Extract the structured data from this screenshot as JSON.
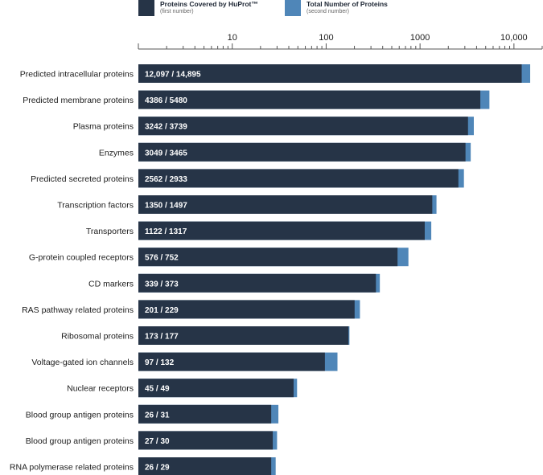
{
  "legend": {
    "covered": {
      "name": "Proteins Covered by HuProt™",
      "sub": "(first number)",
      "color": "#263447"
    },
    "total": {
      "name": "Total Number of Proteins",
      "sub": "(second number)",
      "color": "#4f86b8"
    }
  },
  "chart_data": {
    "type": "bar",
    "orientation": "horizontal",
    "title": "",
    "xscale": "log",
    "xlim": [
      1,
      20000
    ],
    "ticks": [
      {
        "value": 10,
        "label": "10"
      },
      {
        "value": 100,
        "label": "100"
      },
      {
        "value": 1000,
        "label": "1000"
      },
      {
        "value": 10000,
        "label": "10,000"
      }
    ],
    "categories": [
      "Predicted intracellular proteins",
      "Predicted membrane proteins",
      "Plasma proteins",
      "Enzymes",
      "Predicted secreted proteins",
      "Transcription factors",
      "Transporters",
      "G-protein coupled receptors",
      "CD markers",
      "RAS pathway related proteins",
      "Ribosomal proteins",
      "Voltage-gated ion channels",
      "Nuclear receptors",
      "Blood group antigen proteins",
      "Blood group antigen proteins",
      "RNA polymerase related proteins"
    ],
    "series": [
      {
        "name": "Proteins Covered by HuProt™",
        "values": [
          12097,
          4386,
          3242,
          3049,
          2562,
          1350,
          1122,
          576,
          339,
          201,
          173,
          97,
          45,
          26,
          27,
          26
        ]
      },
      {
        "name": "Total Number of Proteins",
        "values": [
          14895,
          5480,
          3739,
          3465,
          2933,
          1497,
          1317,
          752,
          373,
          229,
          177,
          132,
          49,
          31,
          30,
          29
        ]
      }
    ],
    "bar_labels": [
      "12,097 / 14,895",
      "4386 / 5480",
      "3242 / 3739",
      "3049 / 3465",
      "2562 / 2933",
      "1350 / 1497",
      "1122 / 1317",
      "576 / 752",
      "339 / 373",
      "201 / 229",
      "173 / 177",
      "97 / 132",
      "45 / 49",
      "26 / 31",
      "27 / 30",
      "26 / 29"
    ]
  }
}
